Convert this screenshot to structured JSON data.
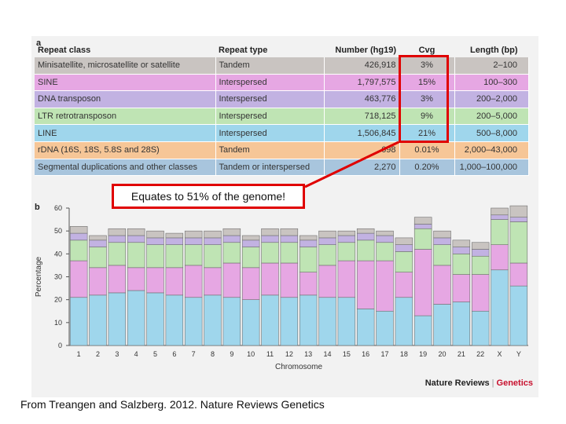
{
  "panel_a_label": "a",
  "panel_b_label": "b",
  "table": {
    "headers": {
      "repeat_class": "Repeat class",
      "repeat_type": "Repeat type",
      "number": "Number (hg19)",
      "cvg": "Cvg",
      "length": "Length (bp)"
    },
    "rows": [
      {
        "repeat_class": "Minisatellite, microsatellite or satellite",
        "repeat_type": "Tandem",
        "number": "426,918",
        "cvg": "3%",
        "length": "2–100",
        "color": "#c9c4c1"
      },
      {
        "repeat_class": "SINE",
        "repeat_type": "Interspersed",
        "number": "1,797,575",
        "cvg": "15%",
        "length": "100–300",
        "color": "#e6a7e3"
      },
      {
        "repeat_class": "DNA transposon",
        "repeat_type": "Interspersed",
        "number": "463,776",
        "cvg": "3%",
        "length": "200–2,000",
        "color": "#c2b2e2"
      },
      {
        "repeat_class": "LTR retrotransposon",
        "repeat_type": "Interspersed",
        "number": "718,125",
        "cvg": "9%",
        "length": "200–5,000",
        "color": "#bfe4b4"
      },
      {
        "repeat_class": "LINE",
        "repeat_type": "Interspersed",
        "number": "1,506,845",
        "cvg": "21%",
        "length": "500–8,000",
        "color": "#9fd6ec"
      },
      {
        "repeat_class": "rDNA (16S, 18S, 5.8S and 28S)",
        "repeat_type": "Tandem",
        "number": "698",
        "cvg": "0.01%",
        "length": "2,000–43,000",
        "color": "#f6c697"
      },
      {
        "repeat_class": "Segmental duplications and other classes",
        "repeat_type": "Tandem or interspersed",
        "number": "2,270",
        "cvg": "0.20%",
        "length": "1,000–100,000",
        "color": "#a8c5dd"
      }
    ]
  },
  "callout_text": "Equates to 51% of the genome!",
  "caption": "From Treangen and Salzberg. 2012. Nature Reviews Genetics",
  "brand": {
    "left": "Nature Reviews",
    "separator": "|",
    "right": "Genetics"
  },
  "colors": {
    "line": "#9fd6ec",
    "sine": "#e6a7e3",
    "dna": "#c2b2e2",
    "ltr": "#bfe4b4",
    "satellite": "#c9c4c1",
    "rdna": "#f6c697",
    "segdup": "#a8c5dd",
    "highlight": "#e00000",
    "brand_accent": "#c8102e"
  },
  "chart_data": {
    "type": "bar",
    "stacked": true,
    "xlabel": "Chromosome",
    "ylabel": "Percentage",
    "ylim": [
      0,
      60
    ],
    "yticks": [
      0,
      10,
      20,
      30,
      40,
      50,
      60
    ],
    "categories": [
      "1",
      "2",
      "3",
      "4",
      "5",
      "6",
      "7",
      "8",
      "9",
      "10",
      "11",
      "12",
      "13",
      "14",
      "15",
      "16",
      "17",
      "18",
      "19",
      "20",
      "21",
      "22",
      "X",
      "Y"
    ],
    "series": [
      {
        "name": "LINE",
        "values": [
          21,
          22,
          23,
          24,
          23,
          22,
          21,
          22,
          21,
          20,
          22,
          21,
          22,
          21,
          21,
          16,
          15,
          21,
          13,
          18,
          19,
          15,
          33,
          26
        ]
      },
      {
        "name": "SINE",
        "values": [
          16,
          12,
          12,
          10,
          11,
          12,
          14,
          12,
          15,
          14,
          14,
          15,
          10,
          14,
          16,
          21,
          22,
          11,
          29,
          17,
          12,
          16,
          11,
          10
        ]
      },
      {
        "name": "LTR retrotransposon",
        "values": [
          9,
          9,
          10,
          11,
          10,
          10,
          9,
          10,
          9,
          9,
          9,
          9,
          11,
          9,
          8,
          9,
          8,
          9,
          9,
          9,
          9,
          8,
          11,
          18
        ]
      },
      {
        "name": "DNA transposon",
        "values": [
          3,
          3,
          3,
          3,
          3,
          3,
          3,
          3,
          3,
          3,
          3,
          3,
          3,
          3,
          3,
          3,
          3,
          3,
          2,
          3,
          3,
          3,
          2,
          2
        ]
      },
      {
        "name": "Minisatellite, microsatellite or satellite",
        "values": [
          3,
          2,
          3,
          3,
          3,
          2,
          3,
          3,
          3,
          2,
          3,
          3,
          2,
          3,
          2,
          2,
          2,
          3,
          3,
          3,
          3,
          3,
          3,
          5
        ]
      }
    ]
  }
}
